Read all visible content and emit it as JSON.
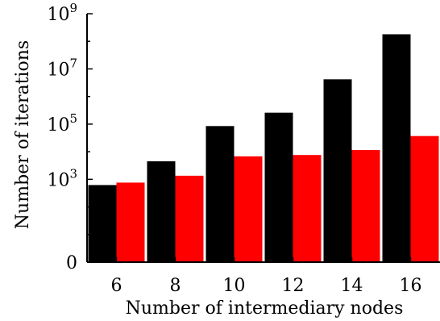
{
  "chart_data": {
    "type": "bar",
    "categories": [
      "6",
      "8",
      "10",
      "12",
      "14",
      "16"
    ],
    "series": [
      {
        "color": "#000000",
        "values": [
          620,
          4500,
          85000,
          260000,
          4200000,
          180000000
        ]
      },
      {
        "color": "#ff0000",
        "values": [
          760,
          1350,
          6800,
          7600,
          11500,
          37000
        ]
      }
    ],
    "xlabel": "Number of intermediary nodes",
    "ylabel": "Number of iterations",
    "yscale": "log",
    "ylim": [
      1,
      1000000000
    ],
    "yticks_labeled": [
      {
        "value": 1,
        "base": "0",
        "exp": ""
      },
      {
        "value": 1000,
        "base": "10",
        "exp": "3"
      },
      {
        "value": 100000,
        "base": "10",
        "exp": "5"
      },
      {
        "value": 10000000,
        "base": "10",
        "exp": "7"
      },
      {
        "value": 1000000000,
        "base": "10",
        "exp": "9"
      }
    ],
    "grid": false,
    "legend": "none"
  }
}
